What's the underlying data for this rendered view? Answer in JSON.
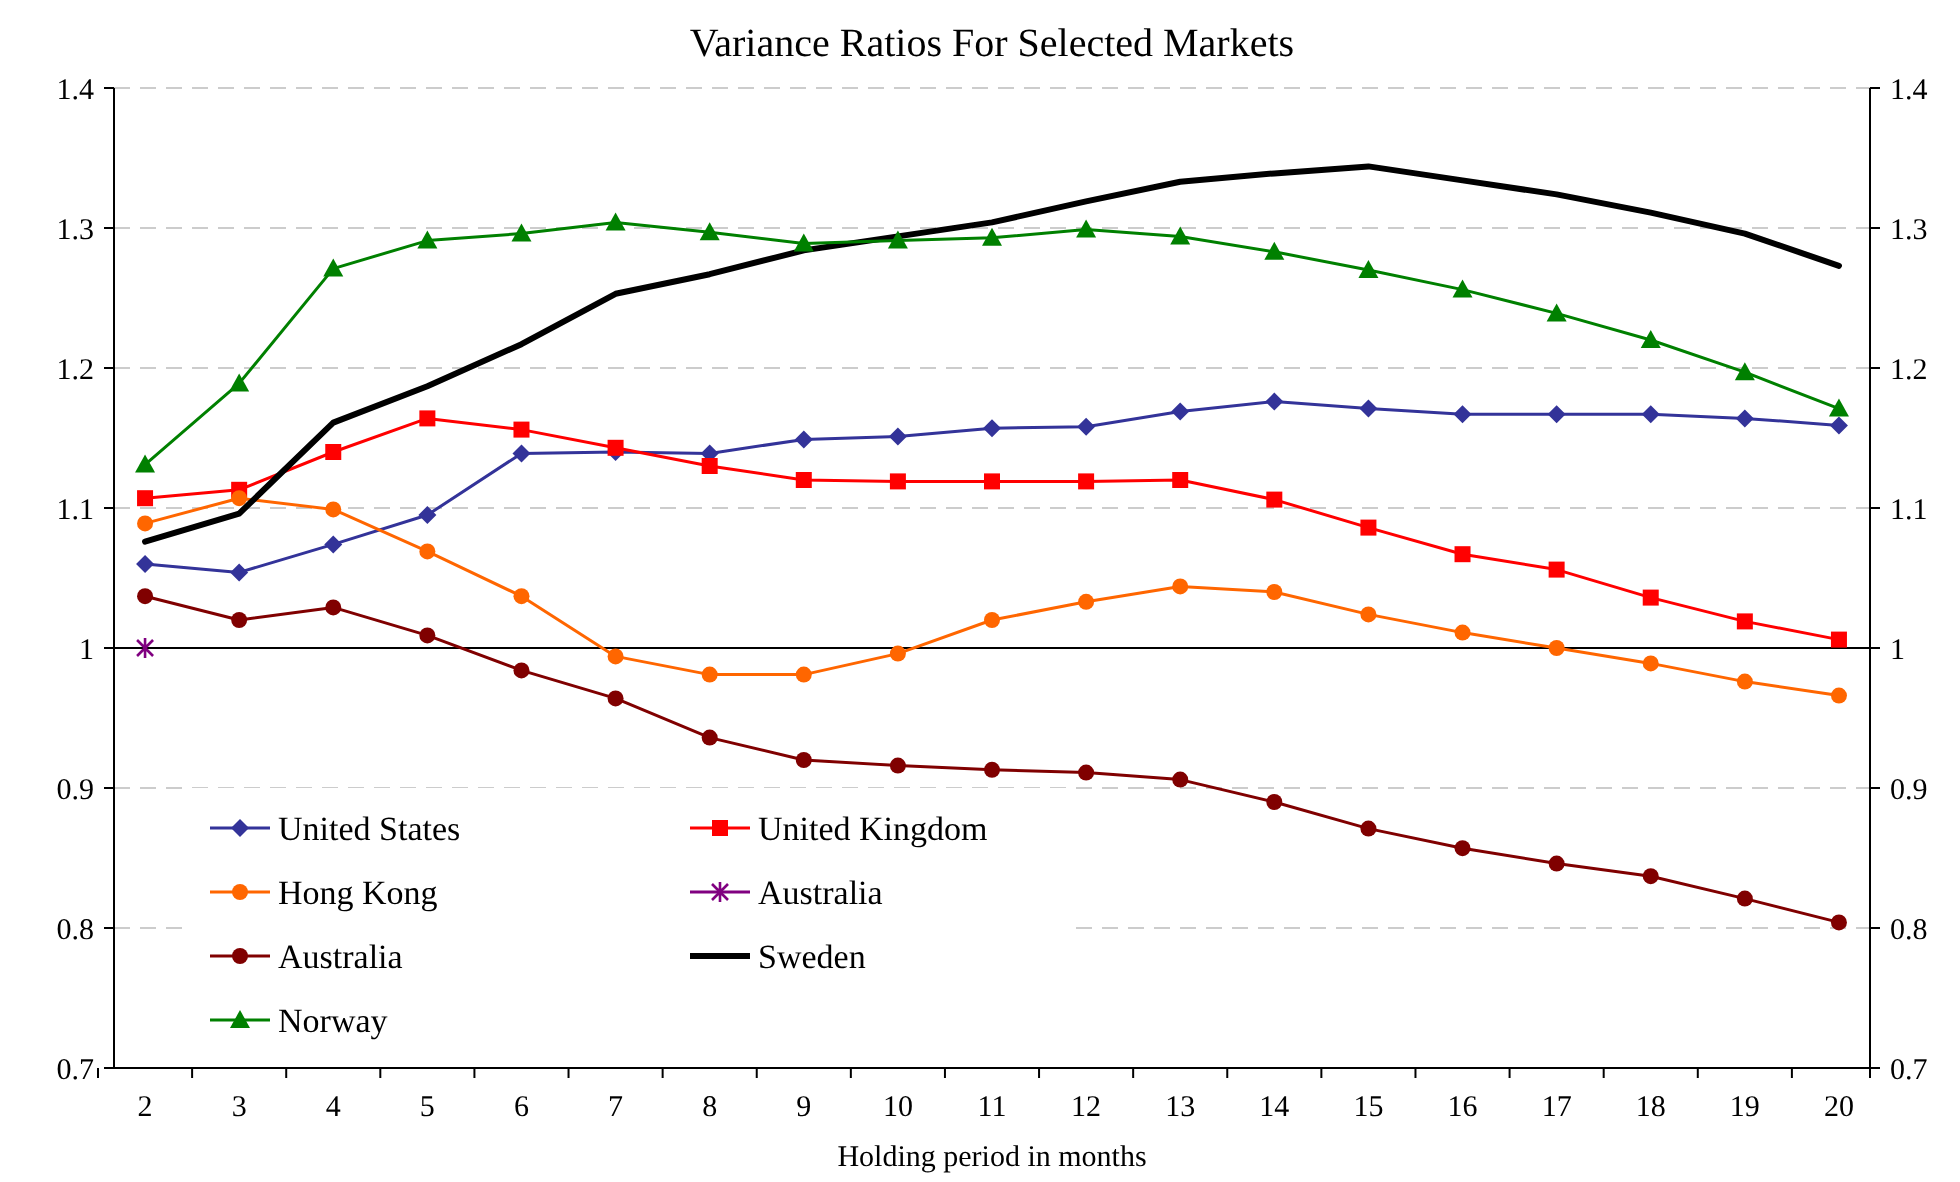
{
  "chart_data": {
    "type": "line",
    "title": "Variance Ratios For Selected Markets",
    "xlabel": "Holding period in months",
    "categories": [
      "2",
      "3",
      "4",
      "5",
      "6",
      "7",
      "8",
      "9",
      "10",
      "11",
      "12",
      "13",
      "14",
      "15",
      "16",
      "17",
      "18",
      "19",
      "20"
    ],
    "series": [
      {
        "name": "United States",
        "color": "#333399",
        "marker": "diamond",
        "values": [
          1.06,
          1.054,
          1.074,
          1.095,
          1.139,
          1.14,
          1.139,
          1.149,
          1.151,
          1.157,
          1.158,
          1.169,
          1.176,
          1.171,
          1.167,
          1.167,
          1.167,
          1.164,
          1.159
        ]
      },
      {
        "name": "United Kingdom",
        "color": "#ff0000",
        "marker": "square",
        "values": [
          1.107,
          1.113,
          1.14,
          1.164,
          1.156,
          1.143,
          1.13,
          1.12,
          1.119,
          1.119,
          1.119,
          1.12,
          1.106,
          1.086,
          1.067,
          1.056,
          1.036,
          1.019,
          1.006
        ]
      },
      {
        "name": "Hong Kong",
        "color": "#ff6600",
        "marker": "circle",
        "values": [
          1.089,
          1.107,
          1.099,
          1.069,
          1.037,
          0.994,
          0.981,
          0.981,
          0.996,
          1.02,
          1.033,
          1.044,
          1.04,
          1.024,
          1.011,
          1.0,
          0.989,
          0.976,
          0.966
        ]
      },
      {
        "name": "Australia",
        "color": "#800080",
        "marker": "cross",
        "values": [
          1.0,
          null,
          null,
          null,
          null,
          null,
          null,
          null,
          null,
          null,
          null,
          null,
          null,
          null,
          null,
          null,
          null,
          null,
          null
        ]
      },
      {
        "name": "Australia",
        "color": "#800000",
        "marker": "circle",
        "values": [
          1.037,
          1.02,
          1.029,
          1.009,
          0.984,
          0.964,
          0.936,
          0.92,
          0.916,
          0.913,
          0.911,
          0.906,
          0.89,
          0.871,
          0.857,
          0.846,
          0.837,
          0.821,
          0.804
        ]
      },
      {
        "name": "Sweden",
        "color": "#000000",
        "marker": "none",
        "values": [
          1.076,
          1.096,
          1.161,
          1.187,
          1.217,
          1.253,
          1.267,
          1.284,
          1.294,
          1.304,
          1.319,
          1.333,
          1.339,
          1.344,
          1.334,
          1.324,
          1.311,
          1.296,
          1.273
        ]
      },
      {
        "name": "Norway",
        "color": "#008000",
        "marker": "triangle",
        "values": [
          1.131,
          1.189,
          1.271,
          1.291,
          1.296,
          1.304,
          1.297,
          1.289,
          1.291,
          1.293,
          1.299,
          1.294,
          1.283,
          1.27,
          1.256,
          1.239,
          1.22,
          1.197,
          1.171
        ]
      }
    ],
    "ylim": [
      0.7,
      1.4
    ],
    "yticks": [
      0.7,
      0.8,
      0.9,
      1,
      1.1,
      1.2,
      1.3,
      1.4
    ],
    "y2lim": [
      0.7,
      1.4
    ],
    "y2ticks": [
      0.7,
      0.8,
      0.9,
      1,
      1.1,
      1.2,
      1.3,
      1.4
    ],
    "ref_lines": [
      {
        "axis": "y",
        "value": 1,
        "color": "#000000"
      }
    ],
    "grid": "y",
    "legend": "bottom left"
  }
}
